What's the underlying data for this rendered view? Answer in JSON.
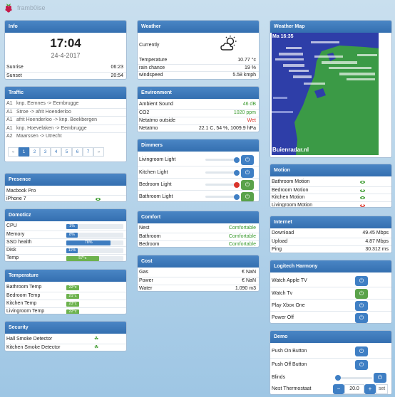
{
  "app": {
    "title": "framb0ise"
  },
  "info": {
    "title": "Info",
    "time": "17:04",
    "date": "24-4-2017",
    "rows": [
      {
        "label": "Sunrise",
        "value": "06:23"
      },
      {
        "label": "Sunset",
        "value": "20:54"
      }
    ]
  },
  "traffic": {
    "title": "Traffic",
    "items": [
      {
        "road": "A1",
        "text": "knp. Eemnes -> Eembrugge"
      },
      {
        "road": "A1",
        "text": "Stroe -> afrit Hoenderloo"
      },
      {
        "road": "A1",
        "text": "afrit Hoenderloo -> knp. Beekbergen"
      },
      {
        "road": "A1",
        "text": "knp. Hoevelaken -> Eembrugge"
      },
      {
        "road": "A2",
        "text": "Maarssen -> Utrecht"
      }
    ],
    "pagination": [
      "«",
      "1",
      "2",
      "3",
      "4",
      "5",
      "6",
      "7",
      "»"
    ],
    "active_page": "1"
  },
  "presence": {
    "title": "Presence",
    "items": [
      {
        "label": "Macbook Pro",
        "home": false
      },
      {
        "label": "iPhone 7",
        "home": true
      }
    ]
  },
  "domoticz": {
    "title": "Domoticz",
    "items": [
      {
        "label": "CPU",
        "value": "1%",
        "percent": 1
      },
      {
        "label": "Memory",
        "value": "8%",
        "percent": 8
      },
      {
        "label": "SSD health",
        "value": "78%",
        "percent": 78
      },
      {
        "label": "Disk",
        "value": "11%",
        "percent": 11
      },
      {
        "label": "Temp",
        "value": "57°c",
        "percent": 57
      }
    ]
  },
  "temperature": {
    "title": "Temperature",
    "items": [
      {
        "label": "Bathroom Temp",
        "value": "22°c"
      },
      {
        "label": "Bedroom Temp",
        "value": "21°c"
      },
      {
        "label": "Kitchen Temp",
        "value": "23°c"
      },
      {
        "label": "Livingroom Temp",
        "value": "22°c"
      }
    ]
  },
  "security": {
    "title": "Security",
    "items": [
      {
        "label": "Hall Smoke Detector"
      },
      {
        "label": "Kitchen Smoke Detector"
      }
    ]
  },
  "weather": {
    "title": "Weather",
    "currently_label": "Currently",
    "icon": "partly-cloudy-day-icon",
    "rows": [
      {
        "label": "Temperature",
        "value": "10.77 °c"
      },
      {
        "label": "rain chance",
        "value": "19 %"
      },
      {
        "label": "windspeed",
        "value": "5.58 kmph"
      }
    ]
  },
  "environment": {
    "title": "Environment",
    "rows": [
      {
        "label": "Ambient Sound",
        "value": "46 dB",
        "color": "#3a9a2e"
      },
      {
        "label": "CO2",
        "value": "1020 ppm",
        "color": "#3a9a2e"
      },
      {
        "label": "Netatmo outside",
        "value": "Wet",
        "color": "#d9342b"
      },
      {
        "label": "Netatmo",
        "value": "22.1 C, 54 %, 1009.9 hPa",
        "color": "#222222"
      }
    ]
  },
  "dimmers": {
    "title": "Dimmers",
    "items": [
      {
        "label": "Livingroom Light",
        "level": 1.0,
        "on": false,
        "knob": "#3f7fc4"
      },
      {
        "label": "Kitchen Light",
        "level": 1.0,
        "on": false,
        "knob": "#3f7fc4"
      },
      {
        "label": "Bedroom Light",
        "level": 1.0,
        "on": true,
        "knob": "#d9342b"
      },
      {
        "label": "Bathroom Light",
        "level": 1.0,
        "on": true,
        "knob": "#3f7fc4"
      }
    ]
  },
  "comfort": {
    "title": "Comfort",
    "rows": [
      {
        "label": "Nest",
        "value": "Comfortable"
      },
      {
        "label": "Bathroom",
        "value": "Comfortable"
      },
      {
        "label": "Bedroom",
        "value": "Comfortable"
      }
    ]
  },
  "cost": {
    "title": "Cost",
    "rows": [
      {
        "label": "Gas",
        "value": "€ NaN"
      },
      {
        "label": "Power",
        "value": "€ NaN"
      },
      {
        "label": "Water",
        "value": "1.090 m3"
      }
    ]
  },
  "weathermap": {
    "title": "Weather Map",
    "timestamp": "Ma 16:35",
    "credit": "Buienradar.nl"
  },
  "motion": {
    "title": "Motion",
    "items": [
      {
        "label": "Bathroom Motion",
        "active": false
      },
      {
        "label": "Bedroom Motion",
        "active": false
      },
      {
        "label": "Kitchen Motion",
        "active": false
      },
      {
        "label": "Livingroom Motion",
        "active": true
      }
    ]
  },
  "internet": {
    "title": "Internet",
    "rows": [
      {
        "label": "Download",
        "value": "49.45 Mbps"
      },
      {
        "label": "Upload",
        "value": "4.87 Mbps"
      },
      {
        "label": "Ping",
        "value": "30.312 ms"
      }
    ]
  },
  "harmony": {
    "title": "Logitech Harmony",
    "items": [
      {
        "label": "Watch Apple TV",
        "on": false
      },
      {
        "label": "Watch Tv",
        "on": true
      },
      {
        "label": "Play Xbox One",
        "on": false
      },
      {
        "label": "Power Off",
        "on": false
      }
    ]
  },
  "demo": {
    "title": "Demo",
    "items": [
      {
        "label": "Push On Button"
      },
      {
        "label": "Push Off Button"
      }
    ],
    "blinds": {
      "label": "Blinds",
      "level": 0.0
    },
    "thermostat": {
      "label": "Nest Thermostaat",
      "minus": "−",
      "value": "20.0",
      "plus": "+",
      "set": "set"
    }
  },
  "colors": {
    "header": "#3a76b8",
    "green": "#3a9a2e",
    "red": "#d9342b",
    "bar": "#3d7cc0"
  }
}
